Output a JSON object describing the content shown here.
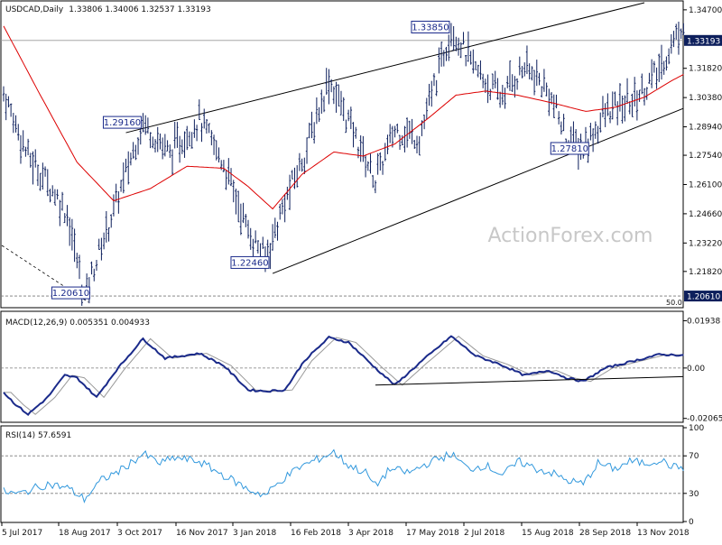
{
  "chart_data": [
    {
      "type": "ohlc",
      "title": "USDCAD,Daily",
      "ohlc_readout": "1.33806 1.34006 1.32537 1.33193",
      "y_ticks": [
        "1.34700",
        "1.31820",
        "1.30380",
        "1.28940",
        "1.27540",
        "1.26100",
        "1.24660",
        "1.23220",
        "1.21820"
      ],
      "y_tick_values": [
        1.347,
        1.3182,
        1.3038,
        1.2894,
        1.2754,
        1.261,
        1.2466,
        1.2322,
        1.2182
      ],
      "ylim": [
        1.2008,
        1.3505
      ],
      "last_price": "1.33193",
      "last_price_value": 1.33193,
      "fib_level_label": "50.0",
      "fib_level_price": "1.20610",
      "fib_level_value": 1.2061,
      "watermark": "ActionForex.com",
      "annotations": [
        {
          "label": "1.33850",
          "price": 1.3385,
          "bar": 183
        },
        {
          "label": "1.29160",
          "price": 1.2916,
          "bar": 57
        },
        {
          "label": "1.27810",
          "price": 1.2781,
          "bar": 237
        },
        {
          "label": "1.22460",
          "price": 1.2246,
          "bar": 107
        },
        {
          "label": "1.20610",
          "price": 1.2061,
          "bar": 33
        }
      ],
      "pivots": [
        [
          0,
          1.306
        ],
        [
          10,
          1.275
        ],
        [
          18,
          1.262
        ],
        [
          26,
          1.247
        ],
        [
          33,
          1.2061
        ],
        [
          44,
          1.245
        ],
        [
          57,
          1.2916
        ],
        [
          68,
          1.276
        ],
        [
          80,
          1.293
        ],
        [
          90,
          1.271
        ],
        [
          100,
          1.238
        ],
        [
          107,
          1.2246
        ],
        [
          115,
          1.252
        ],
        [
          123,
          1.276
        ],
        [
          133,
          1.313
        ],
        [
          141,
          1.292
        ],
        [
          152,
          1.263
        ],
        [
          160,
          1.288
        ],
        [
          170,
          1.284
        ],
        [
          183,
          1.3385
        ],
        [
          193,
          1.317
        ],
        [
          203,
          1.304
        ],
        [
          213,
          1.319
        ],
        [
          223,
          1.306
        ],
        [
          230,
          1.284
        ],
        [
          237,
          1.2781
        ],
        [
          246,
          1.296
        ],
        [
          258,
          1.303
        ],
        [
          268,
          1.317
        ],
        [
          278,
          1.341
        ]
      ],
      "ma_pivots": [
        [
          0,
          1.339
        ],
        [
          15,
          1.305
        ],
        [
          30,
          1.272
        ],
        [
          45,
          1.253
        ],
        [
          60,
          1.259
        ],
        [
          75,
          1.27
        ],
        [
          90,
          1.269
        ],
        [
          100,
          1.26
        ],
        [
          110,
          1.249
        ],
        [
          122,
          1.266
        ],
        [
          135,
          1.277
        ],
        [
          147,
          1.275
        ],
        [
          160,
          1.281
        ],
        [
          173,
          1.293
        ],
        [
          185,
          1.305
        ],
        [
          197,
          1.307
        ],
        [
          210,
          1.305
        ],
        [
          225,
          1.301
        ],
        [
          238,
          1.297
        ],
        [
          250,
          1.299
        ],
        [
          262,
          1.304
        ],
        [
          273,
          1.312
        ],
        [
          278,
          1.3152
        ]
      ],
      "x_ticks": [
        {
          "label": "5 Jul 2017",
          "bar": 0
        },
        {
          "label": "18 Aug 2017",
          "bar": 31
        },
        {
          "label": "3 Oct 2017",
          "bar": 63
        },
        {
          "label": "16 Nov 2017",
          "bar": 95
        },
        {
          "label": "3 Jan 2018",
          "bar": 128
        },
        {
          "label": "16 Feb 2018",
          "bar": 159
        },
        {
          "label": "3 Apr 2018",
          "bar": 191
        },
        {
          "label": "17 May 2018",
          "bar": 222
        },
        {
          "label": "2 Jul 2018",
          "bar": 251
        },
        {
          "label": "15 Aug 2018",
          "bar": 283
        },
        {
          "label": "28 Sep 2018",
          "bar": 315
        },
        {
          "label": "13 Nov 2018",
          "bar": 347
        }
      ],
      "channel_lines": [
        {
          "from": [
            50,
            1.2865
          ],
          "to": [
            262,
            1.3505
          ]
        },
        {
          "from": [
            110,
            1.2172
          ],
          "to": [
            278,
            1.2985
          ]
        }
      ]
    },
    {
      "type": "macd",
      "title": "MACD(12,26,9) 0.005351 0.004933",
      "y_ticks": [
        "0.01938",
        "0.00",
        "-0.020652"
      ],
      "y_tick_values": [
        0.01938,
        0.0,
        -0.020652
      ],
      "ylim": [
        -0.0215,
        0.0225
      ],
      "pivots": [
        [
          0,
          -0.01
        ],
        [
          5,
          -0.015
        ],
        [
          10,
          -0.019
        ],
        [
          18,
          -0.012
        ],
        [
          25,
          -0.003
        ],
        [
          30,
          -0.004
        ],
        [
          38,
          -0.012
        ],
        [
          46,
          -0.001
        ],
        [
          57,
          0.012
        ],
        [
          66,
          0.004
        ],
        [
          80,
          0.006
        ],
        [
          90,
          0.001
        ],
        [
          100,
          -0.009
        ],
        [
          107,
          -0.0095
        ],
        [
          115,
          -0.009
        ],
        [
          123,
          0.003
        ],
        [
          133,
          0.0125
        ],
        [
          141,
          0.0105
        ],
        [
          152,
          0.0
        ],
        [
          160,
          -0.007
        ],
        [
          170,
          0.002
        ],
        [
          183,
          0.013
        ],
        [
          193,
          0.005
        ],
        [
          203,
          0.0015
        ],
        [
          213,
          -0.003
        ],
        [
          223,
          -0.001
        ],
        [
          230,
          -0.004
        ],
        [
          237,
          -0.0055
        ],
        [
          246,
          0.0
        ],
        [
          258,
          0.003
        ],
        [
          268,
          0.0055
        ],
        [
          278,
          0.0053
        ]
      ],
      "signal_lag": 3,
      "trend_line": {
        "from": [
          152,
          -0.007
        ],
        "to": [
          278,
          -0.0035
        ]
      }
    },
    {
      "type": "rsi",
      "title": "RSI(14) 57.6591",
      "y_ticks": [
        "100",
        "70",
        "30",
        "0"
      ],
      "y_tick_values": [
        100,
        70,
        30,
        0
      ],
      "ylim": [
        0,
        100
      ],
      "pivots": [
        [
          0,
          32
        ],
        [
          6,
          29
        ],
        [
          12,
          35
        ],
        [
          18,
          40
        ],
        [
          26,
          36
        ],
        [
          33,
          24
        ],
        [
          40,
          44
        ],
        [
          48,
          55
        ],
        [
          57,
          72
        ],
        [
          64,
          62
        ],
        [
          70,
          68
        ],
        [
          80,
          64
        ],
        [
          88,
          52
        ],
        [
          95,
          42
        ],
        [
          100,
          34
        ],
        [
          107,
          28
        ],
        [
          114,
          45
        ],
        [
          121,
          58
        ],
        [
          128,
          66
        ],
        [
          135,
          74
        ],
        [
          141,
          60
        ],
        [
          148,
          52
        ],
        [
          152,
          38
        ],
        [
          158,
          56
        ],
        [
          166,
          52
        ],
        [
          174,
          63
        ],
        [
          183,
          72
        ],
        [
          190,
          56
        ],
        [
          197,
          60
        ],
        [
          204,
          50
        ],
        [
          211,
          64
        ],
        [
          218,
          56
        ],
        [
          224,
          52
        ],
        [
          230,
          44
        ],
        [
          237,
          40
        ],
        [
          243,
          62
        ],
        [
          250,
          56
        ],
        [
          256,
          64
        ],
        [
          263,
          62
        ],
        [
          268,
          66
        ],
        [
          274,
          58
        ],
        [
          278,
          57.66
        ]
      ]
    }
  ],
  "colors": {
    "price_bars": "#0d1f5c",
    "ma": "#dd0000",
    "macd": "#1a2a8a",
    "signal": "#999999",
    "rsi": "#3399dd",
    "channel": "#000000",
    "grid_dash": "#7a7a7a",
    "watermark": "#c8c8c8"
  }
}
